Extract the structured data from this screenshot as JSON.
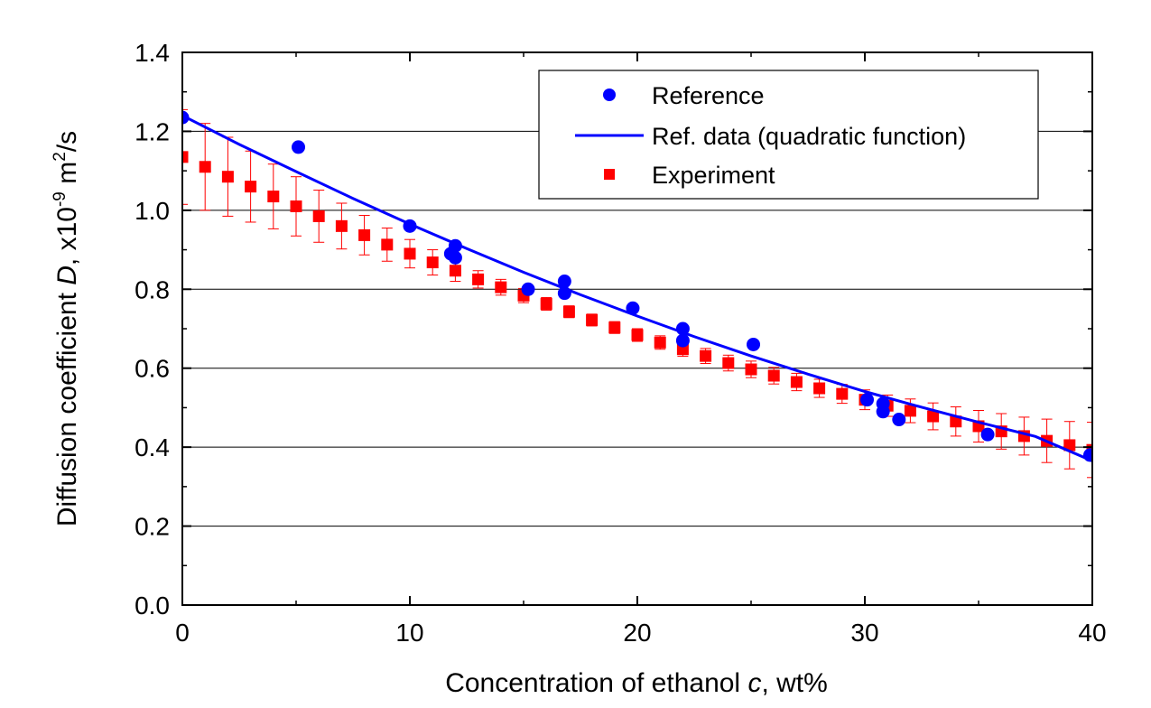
{
  "chart_data": {
    "type": "scatter",
    "xlabel_parts": [
      "Concentration of ethanol ",
      "c",
      ", wt%"
    ],
    "ylabel_parts": [
      "Diffusion coefficient ",
      "D",
      ", x10",
      "-9",
      " m",
      "2",
      "/s"
    ],
    "xlim": [
      0,
      40
    ],
    "ylim": [
      0,
      1.4
    ],
    "x_ticks": [
      0,
      10,
      20,
      30,
      40
    ],
    "x_tick_labels": [
      "0",
      "10",
      "20",
      "30",
      "40"
    ],
    "y_ticks": [
      0.0,
      0.2,
      0.4,
      0.6,
      0.8,
      1.0,
      1.2,
      1.4
    ],
    "y_tick_labels": [
      "0.0",
      "0.2",
      "0.4",
      "0.6",
      "0.8",
      "1.0",
      "1.2",
      "1.4"
    ],
    "grid": "horizontal",
    "legend_position": "top-right",
    "series": [
      {
        "name": "Reference",
        "kind": "scatter",
        "marker": "circle",
        "color": "#0000ff",
        "x": [
          0,
          5.1,
          10,
          11.8,
          12.0,
          12.0,
          15.2,
          16.8,
          16.8,
          19.8,
          22.0,
          22.0,
          25.1,
          30.1,
          30.8,
          30.8,
          31.5,
          35.4,
          39.9
        ],
        "y": [
          1.235,
          1.16,
          0.96,
          0.89,
          0.91,
          0.88,
          0.8,
          0.82,
          0.79,
          0.752,
          0.7,
          0.67,
          0.66,
          0.52,
          0.51,
          0.49,
          0.47,
          0.432,
          0.38
        ]
      },
      {
        "name": "Ref. data (quadratic function)",
        "kind": "line",
        "color": "#0000ff",
        "x": [
          0,
          2.5,
          5,
          7.5,
          10,
          12.5,
          15,
          17.5,
          20,
          22.5,
          25,
          27.5,
          30,
          32.5,
          35,
          37.5,
          40
        ],
        "y": [
          1.24,
          1.167,
          1.098,
          1.03,
          0.965,
          0.903,
          0.843,
          0.786,
          0.732,
          0.68,
          0.631,
          0.585,
          0.541,
          0.501,
          0.463,
          0.427,
          0.365
        ]
      },
      {
        "name": "Experiment",
        "kind": "scatter",
        "marker": "square",
        "color": "#ff0000",
        "x": [
          0,
          1,
          2,
          3,
          4,
          5,
          6,
          7,
          8,
          9,
          10,
          11,
          12,
          13,
          14,
          15,
          16,
          17,
          18,
          19,
          20,
          21,
          22,
          23,
          24,
          25,
          26,
          27,
          28,
          29,
          30,
          31,
          32,
          33,
          34,
          35,
          36,
          37,
          38,
          39,
          40
        ],
        "y": [
          1.135,
          1.11,
          1.085,
          1.06,
          1.035,
          1.01,
          0.985,
          0.96,
          0.937,
          0.913,
          0.89,
          0.868,
          0.847,
          0.825,
          0.805,
          0.784,
          0.763,
          0.743,
          0.722,
          0.703,
          0.684,
          0.665,
          0.648,
          0.631,
          0.613,
          0.597,
          0.581,
          0.565,
          0.549,
          0.535,
          0.52,
          0.505,
          0.492,
          0.478,
          0.465,
          0.453,
          0.44,
          0.428,
          0.416,
          0.405,
          0.393
        ],
        "err": [
          0.12,
          0.11,
          0.1,
          0.09,
          0.082,
          0.075,
          0.066,
          0.058,
          0.05,
          0.042,
          0.036,
          0.032,
          0.027,
          0.022,
          0.02,
          0.018,
          0.016,
          0.015,
          0.015,
          0.015,
          0.016,
          0.017,
          0.018,
          0.019,
          0.02,
          0.021,
          0.021,
          0.022,
          0.023,
          0.024,
          0.025,
          0.027,
          0.03,
          0.034,
          0.037,
          0.04,
          0.045,
          0.048,
          0.055,
          0.06,
          0.07
        ]
      }
    ]
  }
}
